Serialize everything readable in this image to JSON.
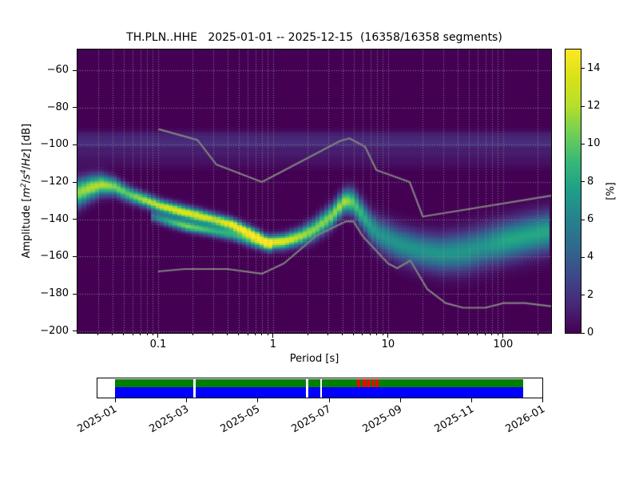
{
  "title": {
    "full": "TH.PLN..HHE   2025-01-01 -- 2025-12-15  (16358/16358 segments)",
    "station": "TH.PLN..HHE",
    "date_range": "2025-01-01 -- 2025-12-15",
    "segments": "16358/16358 segments"
  },
  "axes": {
    "xlabel": "Period [s]",
    "ylabel_rich": [
      {
        "text": "Amplitude ["
      },
      {
        "text": "m",
        "italic": true
      },
      {
        "text": "2",
        "sup": true,
        "italic": true
      },
      {
        "text": "/"
      },
      {
        "text": "s",
        "italic": true
      },
      {
        "text": "4",
        "sup": true,
        "italic": true
      },
      {
        "text": "/"
      },
      {
        "text": "Hz",
        "italic": true
      },
      {
        "text": "] [dB]"
      }
    ],
    "x_ticks": [
      {
        "v": 0.1,
        "label": "0.1"
      },
      {
        "v": 1,
        "label": "1"
      },
      {
        "v": 10,
        "label": "10"
      },
      {
        "v": 100,
        "label": "100"
      }
    ],
    "y_ticks": [
      {
        "v": -60,
        "label": "−60"
      },
      {
        "v": -80,
        "label": "−80"
      },
      {
        "v": -100,
        "label": "−100"
      },
      {
        "v": -120,
        "label": "−120"
      },
      {
        "v": -140,
        "label": "−140"
      },
      {
        "v": -160,
        "label": "−160"
      },
      {
        "v": -180,
        "label": "−180"
      },
      {
        "v": -200,
        "label": "−200"
      }
    ],
    "xlim": [
      0.0199,
      261.3
    ],
    "ylim": [
      -201,
      -48.8
    ],
    "grid": "dotted"
  },
  "colorbar": {
    "label": "[%]",
    "vmin": 0,
    "vmax": 15,
    "ticks": [
      {
        "v": 0,
        "label": "0"
      },
      {
        "v": 2,
        "label": "2"
      },
      {
        "v": 4,
        "label": "4"
      },
      {
        "v": 6,
        "label": "6"
      },
      {
        "v": 8,
        "label": "8"
      },
      {
        "v": 10,
        "label": "10"
      },
      {
        "v": 12,
        "label": "12"
      },
      {
        "v": 14,
        "label": "14"
      }
    ]
  },
  "chart_data": {
    "type": "heatmap",
    "title": "TH.PLN..HHE   2025-01-01 -- 2025-12-15  (16358/16358 segments)",
    "xlabel": "Period [s]",
    "ylabel": "Amplitude [m2/s4/Hz] [dB]",
    "x_range_s": [
      0.0199,
      261.3
    ],
    "db_range": [
      -201,
      -48.8
    ],
    "percent_range": [
      0,
      15
    ],
    "period_bin_octaves": 0.125,
    "db_bin": 1,
    "viridis": [
      "#440154",
      "#482878",
      "#3e4989",
      "#31688e",
      "#26828e",
      "#1f9e89",
      "#35b779",
      "#6ece58",
      "#b5de2b",
      "#d8e219",
      "#fde725"
    ],
    "main_ridge": [
      [
        0.02,
        -126.0,
        11,
        5.0
      ],
      [
        0.026,
        -123.0,
        12,
        4.2
      ],
      [
        0.032,
        -121.5,
        12,
        3.6
      ],
      [
        0.042,
        -122.5,
        11,
        3.0
      ],
      [
        0.055,
        -126.5,
        10,
        2.7
      ],
      [
        0.075,
        -129.5,
        12,
        2.4
      ],
      [
        0.1,
        -132.5,
        13,
        2.3
      ],
      [
        0.15,
        -135.5,
        14,
        2.3
      ],
      [
        0.22,
        -138.0,
        14,
        2.3
      ],
      [
        0.32,
        -140.5,
        13,
        2.2
      ],
      [
        0.45,
        -143.0,
        15,
        2.2
      ],
      [
        0.65,
        -148.0,
        15,
        2.4
      ],
      [
        0.9,
        -152.5,
        15,
        2.4
      ],
      [
        1.25,
        -152.0,
        14,
        2.6
      ],
      [
        1.7,
        -149.5,
        12,
        3.0
      ],
      [
        2.3,
        -145.5,
        11,
        3.6
      ],
      [
        3.2,
        -138.5,
        11,
        4.0
      ],
      [
        4.2,
        -130.0,
        12,
        4.0
      ],
      [
        5.0,
        -131.0,
        10,
        4.5
      ],
      [
        6.5,
        -141.0,
        8,
        5.0
      ],
      [
        8.0,
        -147.5,
        7,
        5.5
      ],
      [
        12.0,
        -153.0,
        7,
        6.0
      ],
      [
        18.0,
        -156.5,
        7,
        6.2
      ],
      [
        28.0,
        -158.5,
        7,
        6.5
      ],
      [
        45.0,
        -157.5,
        7,
        7.0
      ],
      [
        70.0,
        -154.5,
        7,
        7.0
      ],
      [
        100.0,
        -152.0,
        8,
        7.0
      ],
      [
        150.0,
        -149.5,
        8,
        7.0
      ],
      [
        210.0,
        -147.5,
        8,
        7.0
      ],
      [
        261.0,
        -146.5,
        8,
        7.0
      ]
    ],
    "secondary_ridge": [
      [
        0.09,
        -138.5,
        5,
        1.9
      ],
      [
        0.13,
        -141.5,
        9,
        1.9
      ],
      [
        0.18,
        -143.8,
        11,
        1.9
      ],
      [
        0.28,
        -146.0,
        9,
        1.9
      ],
      [
        0.45,
        -148.5,
        8,
        2.0
      ],
      [
        0.7,
        -153.0,
        6,
        2.0
      ],
      [
        1.0,
        -155.5,
        3,
        2.0
      ]
    ],
    "haze_bands": [
      [
        -95.5,
        1.3,
        2.0
      ],
      [
        -99.5,
        1.6,
        1.6
      ],
      [
        -104,
        1.0,
        2.0
      ],
      [
        -109,
        0.6,
        2.5
      ]
    ],
    "noise_models": {
      "color": "#7f7f7f",
      "nhnm": [
        [
          0.1,
          -91.5
        ],
        [
          0.22,
          -97.4
        ],
        [
          0.32,
          -110.5
        ],
        [
          0.8,
          -120.0
        ],
        [
          3.8,
          -98.0
        ],
        [
          4.6,
          -96.5
        ],
        [
          6.3,
          -101.0
        ],
        [
          7.9,
          -113.5
        ],
        [
          15.4,
          -120.0
        ],
        [
          20.0,
          -138.5
        ],
        [
          261.0,
          -127.3
        ]
      ],
      "nlnm": [
        [
          0.1,
          -168.0
        ],
        [
          0.17,
          -166.7
        ],
        [
          0.4,
          -166.7
        ],
        [
          0.8,
          -169.2
        ],
        [
          1.24,
          -163.7
        ],
        [
          2.4,
          -148.6
        ],
        [
          4.3,
          -141.1
        ],
        [
          5.0,
          -141.1
        ],
        [
          6.0,
          -149.0
        ],
        [
          10.0,
          -163.7
        ],
        [
          12.0,
          -166.3
        ],
        [
          15.6,
          -162.1
        ],
        [
          21.9,
          -177.5
        ],
        [
          31.6,
          -185.0
        ],
        [
          45.0,
          -187.5
        ],
        [
          70.0,
          -187.5
        ],
        [
          101.0,
          -185.0
        ],
        [
          154.0,
          -185.0
        ],
        [
          261.0,
          -186.7
        ]
      ]
    }
  },
  "timeline": {
    "labels": [
      "2025-01",
      "2025-03",
      "2025-05",
      "2025-07",
      "2025-09",
      "2025-11",
      "2026-01"
    ],
    "coverage": {
      "start_frac": 0.0,
      "end_frac": 0.954
    },
    "green_color": "#008000",
    "blue_color": "#0000ff",
    "red_color": "#ff0000",
    "gaps": [
      {
        "frac": 0.182,
        "w": 3
      },
      {
        "frac": 0.445,
        "w": 3
      },
      {
        "frac": 0.479,
        "w": 2
      }
    ],
    "red_segments": [
      [
        0.566,
        0.572
      ],
      [
        0.578,
        0.587
      ],
      [
        0.59,
        0.595
      ],
      [
        0.599,
        0.604
      ],
      [
        0.608,
        0.615
      ]
    ]
  }
}
